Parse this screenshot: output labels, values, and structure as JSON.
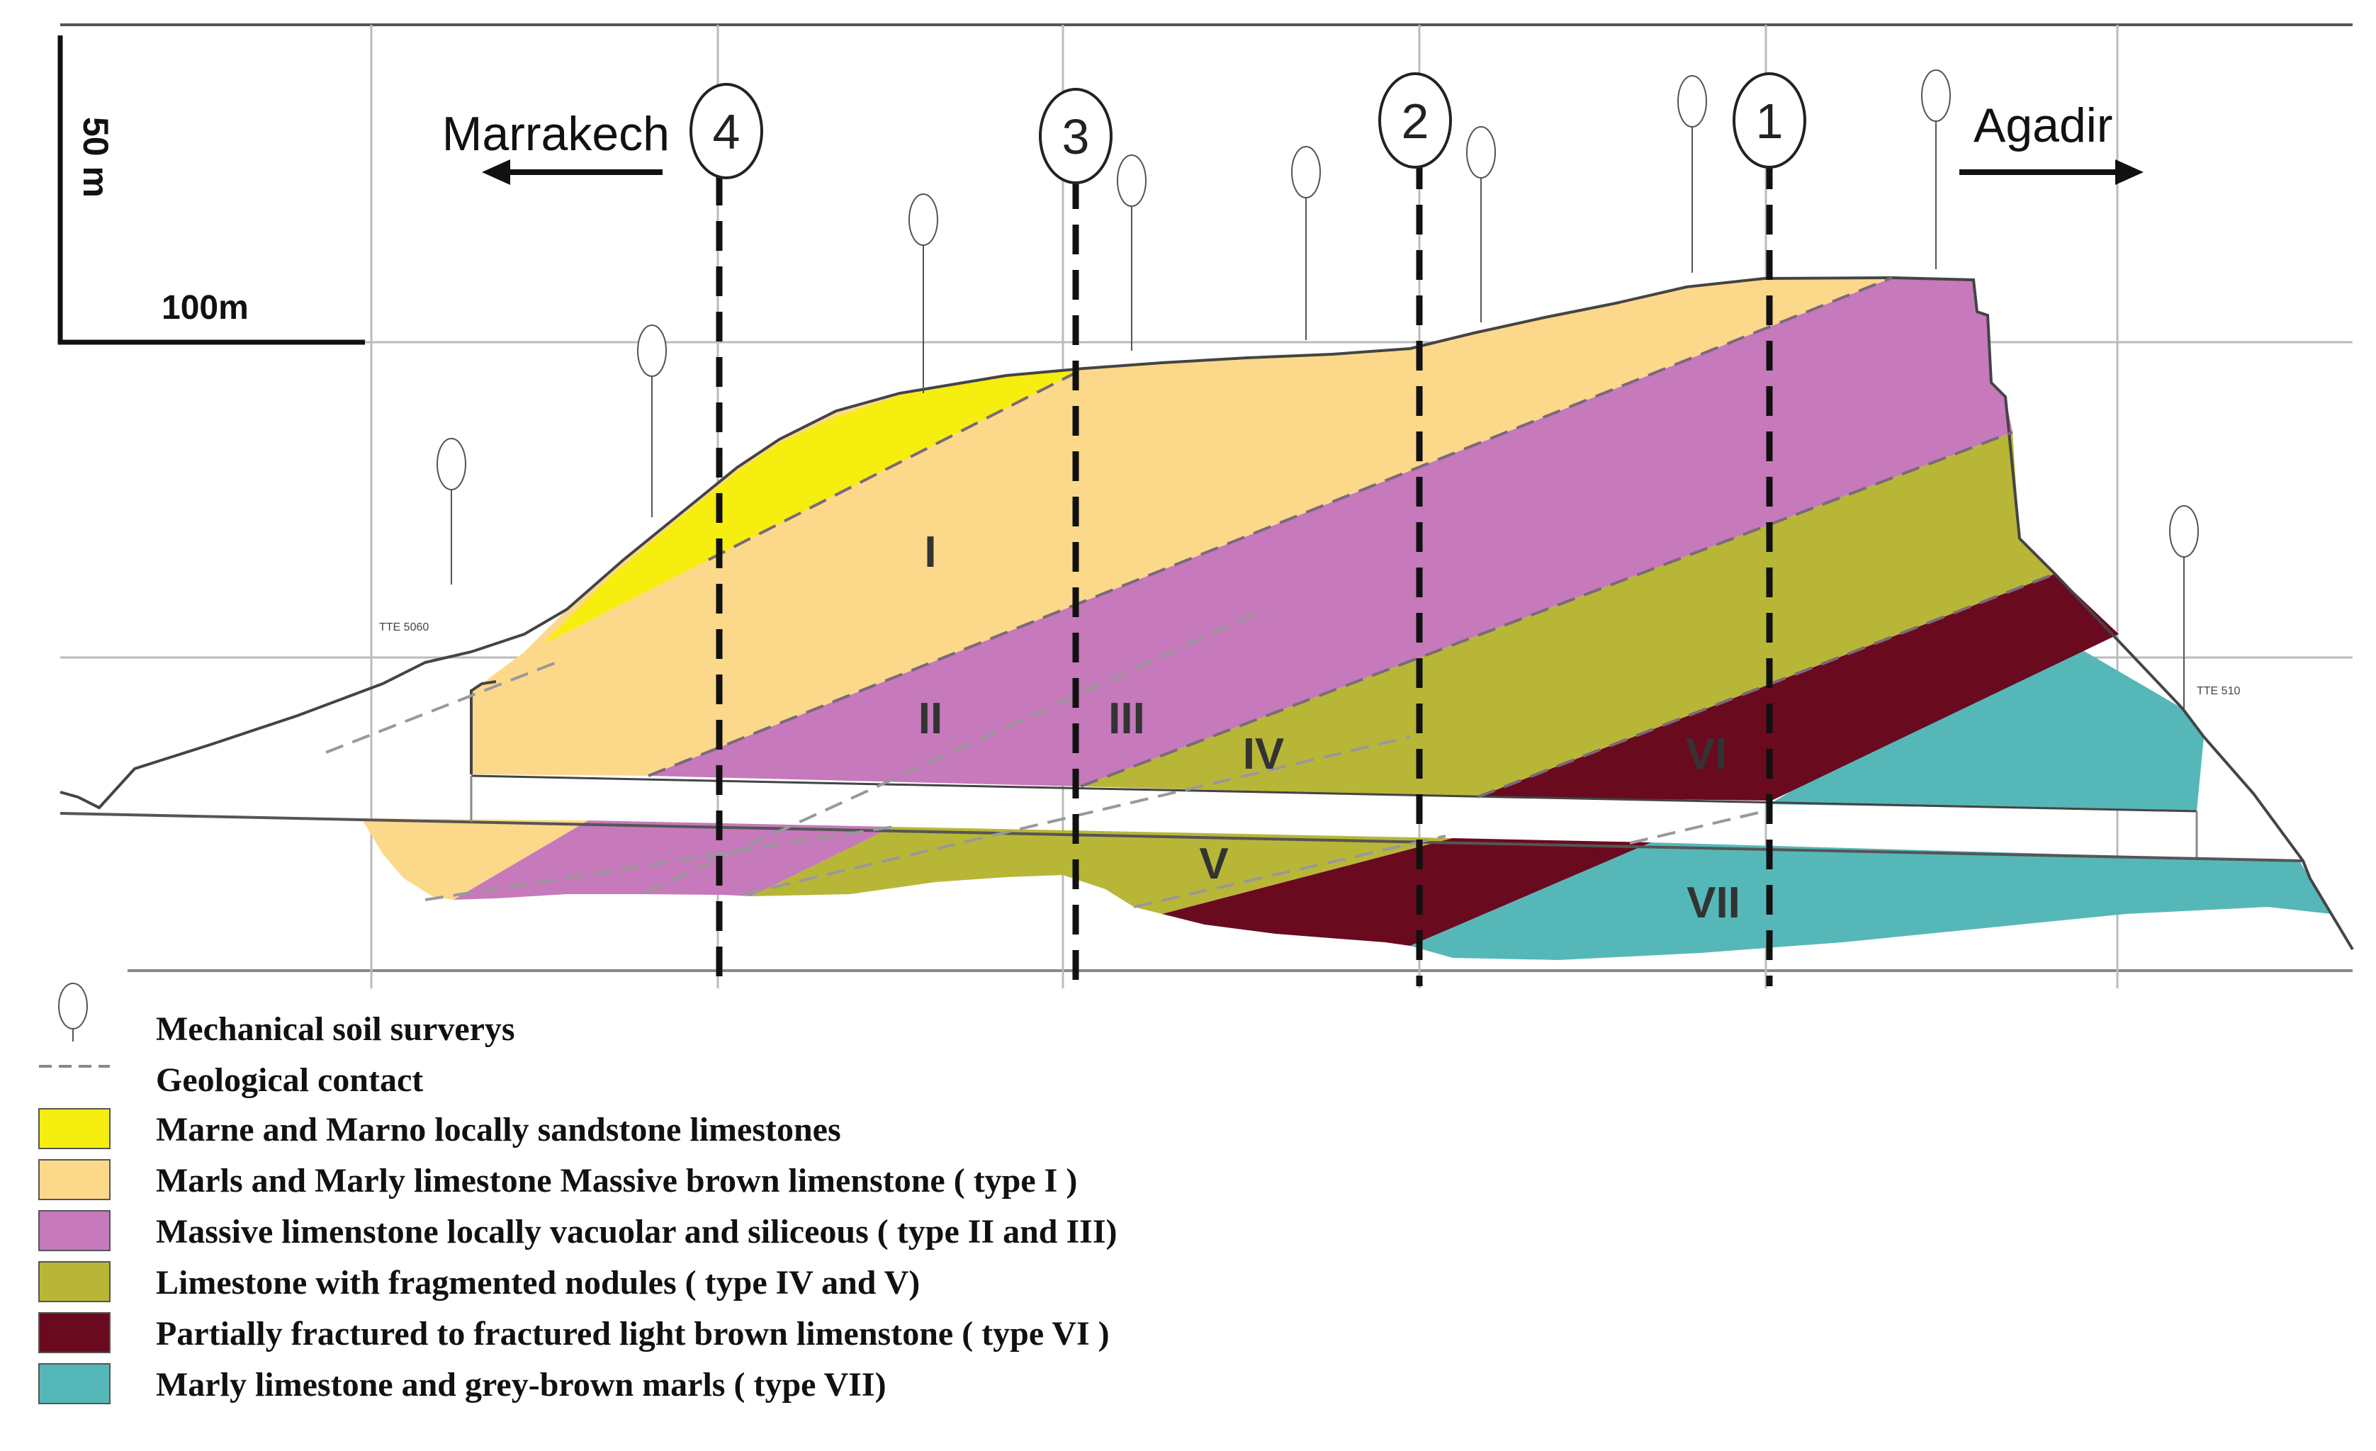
{
  "scale": {
    "vertical_label": "50 m",
    "horizontal_label": "100m"
  },
  "directions": {
    "left": "Marrakech",
    "right": "Agadir"
  },
  "sections": [
    "4",
    "3",
    "2",
    "1"
  ],
  "units": [
    "I",
    "II",
    "III",
    "IV",
    "V",
    "VI",
    "VII"
  ],
  "elevations": {
    "left": "TTE 5060",
    "right": "TTE 510"
  },
  "legend": [
    {
      "key": "survey",
      "label": "Mechanical  soil  surverys"
    },
    {
      "key": "contact",
      "label": "Geological  contact"
    },
    {
      "key": "marne",
      "label": "Marne  and  Marno  locally  sandstone  limestones",
      "color": "#f5ee0f"
    },
    {
      "key": "type1",
      "label": "Marls  and  Marly  limestone  Massive  brown   limenstone  ( type  I )",
      "color": "#fcd98a"
    },
    {
      "key": "type2_3",
      "label": "Massive  limenstone  locally  vacuolar   and   siliceous ( type  II  and  III)",
      "color": "#c679bb"
    },
    {
      "key": "type4_5",
      "label": "Limestone  with  fragmented    nodules  ( type  IV  and  V)",
      "color": "#b8b637"
    },
    {
      "key": "type6",
      "label": "Partially  fractured   to  fractured   light brown   limenstone ( type  VI )",
      "color": "#6a0a1f"
    },
    {
      "key": "type7",
      "label": "Marly  limestone  and  grey-brown   marls ( type  VII)",
      "color": "#56b7b9"
    }
  ]
}
